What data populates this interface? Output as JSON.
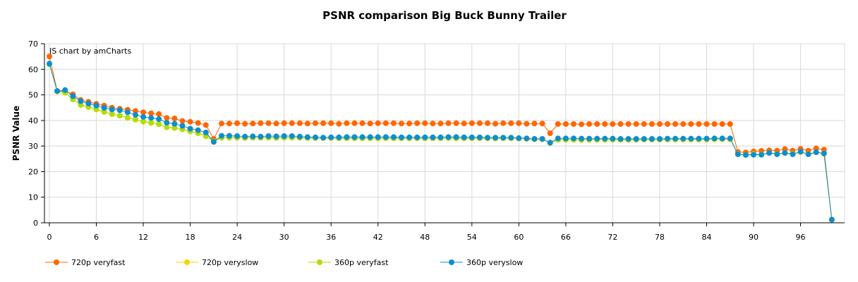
{
  "chart_data": {
    "type": "line",
    "title": "PSNR comparison Big Buck Bunny Trailer",
    "credit": "JS chart by amCharts",
    "xlabel": "",
    "ylabel": "PSNR Value",
    "xlim": [
      0,
      100
    ],
    "ylim": [
      0,
      70
    ],
    "x_ticks": [
      "0",
      "6",
      "12",
      "18",
      "24",
      "30",
      "36",
      "42",
      "48",
      "54",
      "60",
      "66",
      "72",
      "78",
      "84",
      "90",
      "96"
    ],
    "y_ticks": [
      "0",
      "10",
      "20",
      "30",
      "40",
      "50",
      "60",
      "70"
    ],
    "grid": true,
    "legend_position": "bottom",
    "x": [
      0,
      1,
      2,
      3,
      4,
      5,
      6,
      7,
      8,
      9,
      10,
      11,
      12,
      13,
      14,
      15,
      16,
      17,
      18,
      19,
      20,
      21,
      22,
      23,
      24,
      25,
      26,
      27,
      28,
      29,
      30,
      31,
      32,
      33,
      34,
      35,
      36,
      37,
      38,
      39,
      40,
      41,
      42,
      43,
      44,
      45,
      46,
      47,
      48,
      49,
      50,
      51,
      52,
      53,
      54,
      55,
      56,
      57,
      58,
      59,
      60,
      61,
      62,
      63,
      64,
      65,
      66,
      67,
      68,
      69,
      70,
      71,
      72,
      73,
      74,
      75,
      76,
      77,
      78,
      79,
      80,
      81,
      82,
      83,
      84,
      85,
      86,
      87,
      88,
      89,
      90,
      91,
      92,
      93,
      94,
      95,
      96,
      97,
      98,
      99,
      100
    ],
    "series": [
      {
        "name": "720p veryfast",
        "color": "#ff6600",
        "values": [
          65,
          51.5,
          51.5,
          50.2,
          48,
          47.3,
          46.5,
          45.8,
          45,
          44.6,
          44.2,
          43.7,
          43.2,
          42.8,
          42.5,
          41,
          40.8,
          39.8,
          39.5,
          39,
          38.2,
          32.8,
          38.8,
          38.8,
          38.9,
          38.7,
          38.8,
          38.9,
          38.9,
          38.8,
          38.9,
          38.9,
          38.9,
          38.8,
          38.9,
          38.9,
          38.9,
          38.7,
          38.9,
          38.9,
          38.9,
          38.8,
          38.9,
          38.9,
          38.9,
          38.8,
          38.8,
          38.9,
          38.9,
          38.8,
          38.8,
          38.9,
          38.9,
          38.8,
          38.9,
          38.9,
          38.9,
          38.7,
          38.9,
          38.9,
          38.9,
          38.7,
          38.8,
          38.8,
          35,
          38.6,
          38.6,
          38.6,
          38.5,
          38.6,
          38.6,
          38.6,
          38.6,
          38.6,
          38.6,
          38.6,
          38.6,
          38.6,
          38.6,
          38.6,
          38.6,
          38.6,
          38.6,
          38.6,
          38.6,
          38.6,
          38.6,
          38.6,
          27.7,
          27.5,
          27.9,
          28.1,
          28.3,
          28.2,
          28.8,
          28.2,
          28.9,
          28.2,
          29.1,
          28.6,
          1.2
        ]
      },
      {
        "name": "720p veryslow",
        "color": "#fcd202",
        "values": [
          62,
          51.3,
          50.8,
          48.2,
          46,
          45.2,
          44.3,
          43.3,
          42.4,
          41.8,
          41,
          40.3,
          39.5,
          39,
          38.5,
          37.3,
          37,
          36.5,
          35.7,
          35,
          33.8,
          31.8,
          33.2,
          33.2,
          33.2,
          33.1,
          33.2,
          33.2,
          33.2,
          33.1,
          33.2,
          33.2,
          33.2,
          33.1,
          33.1,
          33.1,
          33.1,
          33,
          33,
          33,
          33,
          33,
          33,
          33,
          33,
          33,
          33,
          33,
          33,
          33,
          33,
          33.1,
          33,
          33,
          33,
          33,
          33,
          32.9,
          33,
          33,
          32.9,
          32.8,
          32.6,
          32.6,
          31.2,
          32.4,
          32.4,
          32.4,
          32.3,
          32.4,
          32.4,
          32.4,
          32.4,
          32.4,
          32.4,
          32.4,
          32.5,
          32.5,
          32.5,
          32.5,
          32.5,
          32.5,
          32.5,
          32.5,
          32.5,
          32.6,
          32.6,
          32.6,
          26.8,
          26.5,
          26.8,
          26.6,
          27.3,
          26.8,
          27.2,
          26.9,
          27.6,
          26.8,
          27.5,
          27,
          1.2
        ]
      },
      {
        "name": "360p veryfast",
        "color": "#b0de09",
        "values": [
          62,
          51.4,
          50.9,
          48.3,
          46.1,
          45.3,
          44.4,
          43.4,
          42.5,
          41.9,
          41.1,
          40.4,
          39.6,
          39.1,
          38.6,
          37.4,
          37.1,
          36.6,
          35.8,
          35.1,
          33.9,
          31.9,
          33.3,
          33.3,
          33.3,
          33.2,
          33.3,
          33.3,
          33.3,
          33.2,
          33.3,
          33.3,
          33.3,
          33.2,
          33.2,
          33.2,
          33.2,
          33.1,
          33.1,
          33.1,
          33.1,
          33.1,
          33.1,
          33.1,
          33.1,
          33.1,
          33.1,
          33.1,
          33.1,
          33.1,
          33.1,
          33.2,
          33.1,
          33.1,
          33.1,
          33.1,
          33.1,
          33,
          33.1,
          33.1,
          33,
          32.9,
          32.7,
          32.7,
          31.3,
          32.5,
          32.5,
          32.5,
          32.4,
          32.5,
          32.5,
          32.5,
          32.5,
          32.5,
          32.5,
          32.5,
          32.6,
          32.6,
          32.6,
          32.6,
          32.6,
          32.6,
          32.6,
          32.6,
          32.6,
          32.7,
          32.7,
          32.7,
          26.9,
          26.6,
          26.9,
          26.7,
          27.4,
          26.9,
          27.3,
          27,
          27.7,
          26.9,
          27.6,
          27.1,
          1.2
        ]
      },
      {
        "name": "360p veryslow",
        "color": "#0d8ecf",
        "values": [
          62.2,
          51.5,
          51.9,
          49.5,
          47.5,
          46.6,
          45.8,
          44.9,
          44.3,
          44,
          43.2,
          42.2,
          41.4,
          41,
          40.5,
          39.1,
          38.7,
          37.9,
          36.8,
          36.2,
          35.3,
          31.6,
          34,
          34,
          33.9,
          33.7,
          33.8,
          33.7,
          33.9,
          33.8,
          33.9,
          33.9,
          33.7,
          33.5,
          33.4,
          33.3,
          33.4,
          33.4,
          33.5,
          33.5,
          33.5,
          33.5,
          33.5,
          33.5,
          33.5,
          33.4,
          33.4,
          33.4,
          33.4,
          33.4,
          33.4,
          33.5,
          33.5,
          33.4,
          33.4,
          33.4,
          33.3,
          33.3,
          33.3,
          33.3,
          33.1,
          33,
          32.8,
          32.8,
          31.3,
          33,
          33,
          33,
          32.9,
          32.9,
          32.9,
          32.9,
          32.9,
          32.8,
          32.8,
          32.8,
          32.8,
          32.8,
          32.8,
          32.9,
          32.9,
          32.9,
          32.9,
          32.9,
          32.9,
          33,
          33,
          33,
          26.8,
          26.5,
          26.6,
          26.6,
          27.3,
          26.8,
          27.3,
          26.8,
          27.8,
          26.8,
          27.6,
          27.1,
          1.2
        ]
      }
    ]
  }
}
